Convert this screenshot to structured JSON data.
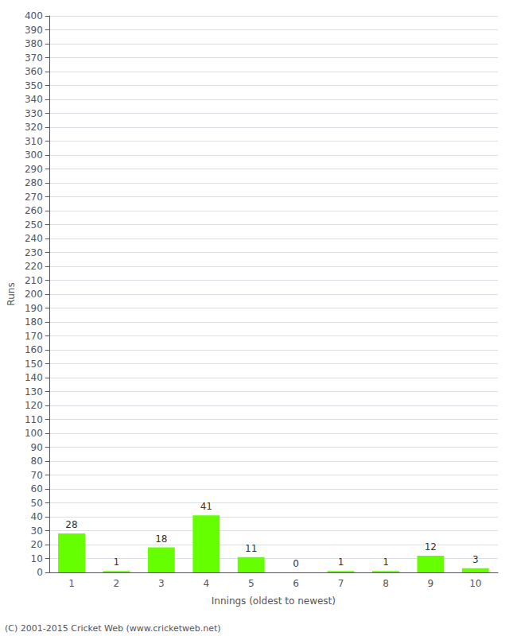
{
  "chart_data": {
    "type": "bar",
    "xlabel": "Innings (oldest to newest)",
    "ylabel": "Runs",
    "categories": [
      1,
      2,
      3,
      4,
      5,
      6,
      7,
      8,
      9,
      10
    ],
    "values": [
      28,
      1,
      18,
      41,
      11,
      0,
      1,
      1,
      12,
      3
    ],
    "color": "#66ff00",
    "ylim": [
      0,
      400
    ],
    "yticks": [
      0,
      10,
      20,
      30,
      40,
      50,
      60,
      70,
      80,
      90,
      100,
      110,
      120,
      130,
      140,
      150,
      160,
      170,
      180,
      190,
      200,
      210,
      220,
      230,
      240,
      250,
      260,
      270,
      280,
      290,
      300,
      310,
      320,
      330,
      340,
      350,
      360,
      370,
      380,
      390,
      400
    ],
    "grid": true,
    "data_labels": true,
    "annotations": [
      "(C) 2001-2015 Cricket Web (www.cricketweb.net)"
    ]
  }
}
